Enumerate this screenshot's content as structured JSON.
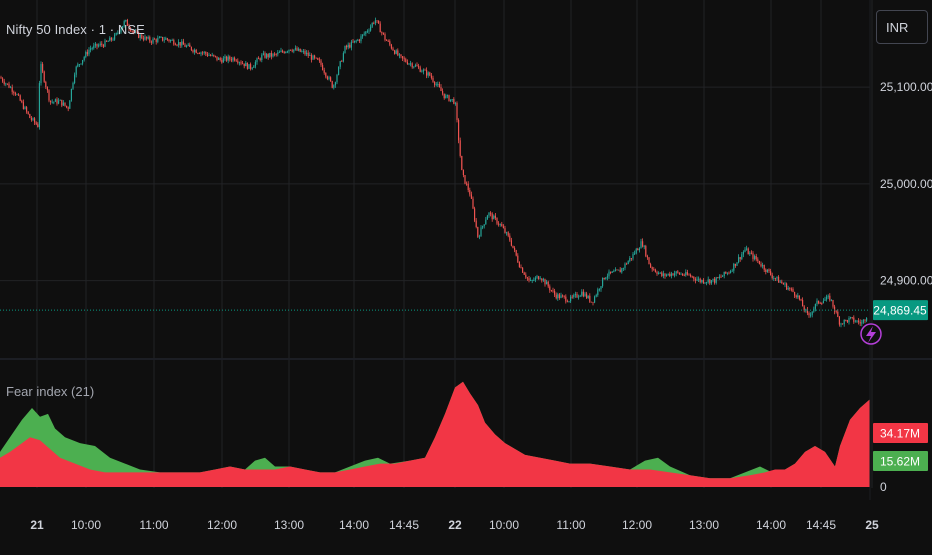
{
  "header": {
    "symbol": "Nifty 50 Index · 1 · NSE",
    "currency": "INR"
  },
  "colors": {
    "background": "#0f0f0f",
    "grid": "#222326",
    "up": "#26a69a",
    "down": "#ef5350",
    "fear_red": "#f23645",
    "fear_green": "#4caf50",
    "last_price_bg": "#089981",
    "alert_ring": "#b43fd8",
    "axis_text": "#d1d4dc"
  },
  "chart_data": [
    {
      "type": "line",
      "series": [
        {
          "style": "candlestick",
          "path": [
            [
              0,
              25110
            ],
            [
              15,
              25095
            ],
            [
              30,
              25068
            ],
            [
              38,
              25060
            ],
            [
              40,
              25125
            ],
            [
              50,
              25085
            ],
            [
              60,
              25085
            ],
            [
              68,
              25078
            ],
            [
              75,
              25118
            ],
            [
              90,
              25140
            ],
            [
              105,
              25145
            ],
            [
              115,
              25152
            ],
            [
              125,
              25168
            ],
            [
              135,
              25155
            ],
            [
              150,
              25148
            ],
            [
              165,
              25150
            ],
            [
              180,
              25145
            ],
            [
              195,
              25138
            ],
            [
              205,
              25135
            ],
            [
              220,
              25128
            ],
            [
              235,
              25130
            ],
            [
              250,
              25120
            ],
            [
              262,
              25132
            ],
            [
              275,
              25133
            ],
            [
              290,
              25140
            ],
            [
              305,
              25135
            ],
            [
              320,
              25125
            ],
            [
              333,
              25100
            ],
            [
              345,
              25140
            ],
            [
              360,
              25150
            ],
            [
              370,
              25162
            ],
            [
              375,
              25170
            ],
            [
              385,
              25150
            ],
            [
              400,
              25130
            ],
            [
              415,
              25122
            ],
            [
              430,
              25112
            ],
            [
              445,
              25090
            ],
            [
              455,
              25085
            ],
            [
              462,
              25010
            ],
            [
              470,
              24990
            ],
            [
              478,
              24945
            ],
            [
              488,
              24970
            ],
            [
              500,
              24958
            ],
            [
              510,
              24942
            ],
            [
              520,
              24915
            ],
            [
              530,
              24898
            ],
            [
              540,
              24905
            ],
            [
              555,
              24885
            ],
            [
              570,
              24880
            ],
            [
              582,
              24888
            ],
            [
              592,
              24878
            ],
            [
              605,
              24905
            ],
            [
              620,
              24910
            ],
            [
              632,
              24925
            ],
            [
              642,
              24940
            ],
            [
              650,
              24915
            ],
            [
              662,
              24905
            ],
            [
              675,
              24908
            ],
            [
              690,
              24905
            ],
            [
              700,
              24900
            ],
            [
              715,
              24900
            ],
            [
              730,
              24910
            ],
            [
              745,
              24932
            ],
            [
              758,
              24920
            ],
            [
              772,
              24905
            ],
            [
              785,
              24895
            ],
            [
              797,
              24885
            ],
            [
              808,
              24863
            ],
            [
              818,
              24878
            ],
            [
              830,
              24882
            ],
            [
              840,
              24856
            ],
            [
              850,
              24860
            ],
            [
              862,
              24856
            ],
            [
              870,
              24870
            ]
          ]
        }
      ],
      "last_price": "24,869.45",
      "y_ticks": [
        "25,100.00",
        "25,000.00",
        "24,900.00"
      ],
      "y_tick_values": [
        25100,
        25000,
        24900
      ],
      "ylim": [
        24820,
        25190
      ]
    },
    {
      "type": "area",
      "title": "Fear index (21)",
      "series": [
        {
          "color": "red",
          "path": [
            [
              0,
              10
            ],
            [
              10,
              12
            ],
            [
              22,
              15
            ],
            [
              30,
              17
            ],
            [
              40,
              16
            ],
            [
              50,
              13
            ],
            [
              60,
              10
            ],
            [
              75,
              8
            ],
            [
              90,
              6
            ],
            [
              105,
              5
            ],
            [
              120,
              5
            ],
            [
              140,
              5
            ],
            [
              160,
              5
            ],
            [
              180,
              5
            ],
            [
              200,
              5
            ],
            [
              215,
              6
            ],
            [
              230,
              7
            ],
            [
              245,
              6
            ],
            [
              260,
              6
            ],
            [
              275,
              6
            ],
            [
              290,
              7
            ],
            [
              305,
              6
            ],
            [
              320,
              5
            ],
            [
              335,
              5
            ],
            [
              350,
              6
            ],
            [
              365,
              7
            ],
            [
              380,
              8
            ],
            [
              395,
              8
            ],
            [
              410,
              9
            ],
            [
              425,
              10
            ],
            [
              435,
              17
            ],
            [
              445,
              25
            ],
            [
              455,
              34
            ],
            [
              463,
              36
            ],
            [
              470,
              32
            ],
            [
              478,
              28
            ],
            [
              485,
              22
            ],
            [
              495,
              18
            ],
            [
              505,
              15
            ],
            [
              515,
              13
            ],
            [
              525,
              11
            ],
            [
              540,
              10
            ],
            [
              555,
              9
            ],
            [
              570,
              8
            ],
            [
              590,
              8
            ],
            [
              610,
              7
            ],
            [
              630,
              6
            ],
            [
              650,
              6
            ],
            [
              670,
              5
            ],
            [
              690,
              4
            ],
            [
              710,
              3
            ],
            [
              730,
              3
            ],
            [
              750,
              4
            ],
            [
              765,
              5
            ],
            [
              775,
              6
            ],
            [
              785,
              6
            ],
            [
              795,
              8
            ],
            [
              805,
              12
            ],
            [
              815,
              14
            ],
            [
              825,
              12
            ],
            [
              835,
              7
            ],
            [
              840,
              14
            ],
            [
              850,
              23
            ],
            [
              860,
              27
            ],
            [
              870,
              30
            ]
          ]
        },
        {
          "color": "green",
          "path": [
            [
              0,
              12
            ],
            [
              10,
              17
            ],
            [
              22,
              23
            ],
            [
              32,
              27
            ],
            [
              40,
              24
            ],
            [
              48,
              25
            ],
            [
              55,
              20
            ],
            [
              65,
              17
            ],
            [
              80,
              15
            ],
            [
              95,
              14
            ],
            [
              110,
              10
            ],
            [
              125,
              8
            ],
            [
              140,
              6
            ],
            [
              160,
              5
            ],
            [
              180,
              5
            ],
            [
              200,
              5
            ],
            [
              215,
              6
            ],
            [
              230,
              7
            ],
            [
              245,
              6
            ],
            [
              255,
              9
            ],
            [
              265,
              10
            ],
            [
              275,
              7
            ],
            [
              290,
              7
            ],
            [
              305,
              6
            ],
            [
              320,
              5
            ],
            [
              335,
              5
            ],
            [
              350,
              7
            ],
            [
              365,
              9
            ],
            [
              378,
              10
            ],
            [
              390,
              8
            ],
            [
              410,
              9
            ],
            [
              425,
              10
            ],
            [
              435,
              17
            ],
            [
              445,
              25
            ],
            [
              455,
              34
            ],
            [
              463,
              36
            ],
            [
              470,
              32
            ],
            [
              478,
              28
            ],
            [
              485,
              22
            ],
            [
              495,
              18
            ],
            [
              505,
              15
            ],
            [
              515,
              13
            ],
            [
              525,
              11
            ],
            [
              540,
              10
            ],
            [
              555,
              9
            ],
            [
              570,
              8
            ],
            [
              590,
              8
            ],
            [
              610,
              7
            ],
            [
              630,
              6
            ],
            [
              645,
              9
            ],
            [
              658,
              10
            ],
            [
              670,
              7
            ],
            [
              690,
              4
            ],
            [
              710,
              3
            ],
            [
              730,
              3
            ],
            [
              745,
              5
            ],
            [
              760,
              7
            ],
            [
              772,
              5
            ],
            [
              785,
              6
            ],
            [
              795,
              8
            ],
            [
              805,
              12
            ],
            [
              815,
              14
            ],
            [
              825,
              12
            ],
            [
              835,
              7
            ],
            [
              840,
              14
            ],
            [
              850,
              23
            ],
            [
              860,
              27
            ],
            [
              870,
              30
            ]
          ]
        }
      ],
      "red_value": "34.17M",
      "green_value": "15.62M",
      "y_ticks": [
        "0"
      ],
      "ylim": [
        0,
        40
      ]
    }
  ],
  "time_axis": {
    "labels": [
      "21",
      "10:00",
      "11:00",
      "12:00",
      "13:00",
      "14:00",
      "14:45",
      "22",
      "10:00",
      "11:00",
      "12:00",
      "13:00",
      "14:00",
      "14:45",
      "25"
    ],
    "positions": [
      37,
      86,
      154,
      222,
      289,
      354,
      404,
      455,
      504,
      571,
      637,
      704,
      771,
      821,
      872
    ]
  }
}
